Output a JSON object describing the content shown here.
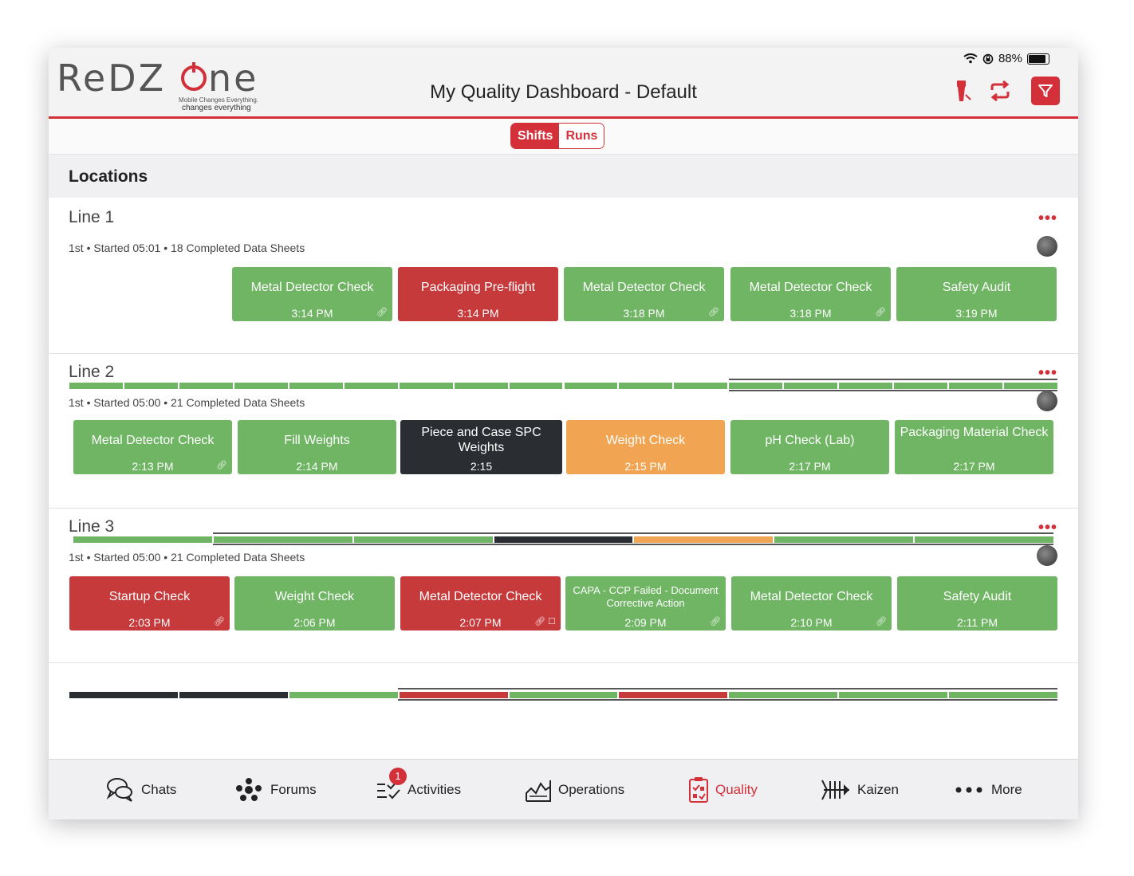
{
  "status_bar": {
    "battery": "88%"
  },
  "header": {
    "logo_text": "RedZone",
    "logo_tagline_1": "Mobile Changes Everything.",
    "logo_tagline_2": "changes everything",
    "title": "My Quality Dashboard - Default"
  },
  "segment": {
    "shifts": "Shifts",
    "runs": "Runs",
    "selected": "Shifts"
  },
  "locations_heading": "Locations",
  "lines": [
    {
      "name": "Line 1",
      "meta": "1st • Started 05:01 • 18 Completed Data Sheets",
      "more": "•••",
      "tiles": [
        {
          "name": "Metal Detector Check",
          "time": "3:14 PM",
          "status": "green",
          "icon": "link"
        },
        {
          "name": "Packaging Pre-flight",
          "time": "3:14 PM",
          "status": "red",
          "icon": ""
        },
        {
          "name": "Metal Detector Check",
          "time": "3:18 PM",
          "status": "green",
          "icon": "link"
        },
        {
          "name": "Metal Detector Check",
          "time": "3:18 PM",
          "status": "green",
          "icon": "link"
        },
        {
          "name": "Safety Audit",
          "time": "3:19 PM",
          "status": "green",
          "icon": ""
        }
      ],
      "history": [
        "green",
        "green",
        "green",
        "green",
        "green",
        "green",
        "green",
        "green",
        "green",
        "green",
        "green",
        "green",
        "green",
        "green",
        "green",
        "green",
        "green",
        "green"
      ]
    },
    {
      "name": "Line 2",
      "meta": "1st • Started 05:00 • 21 Completed Data Sheets",
      "more": "•••",
      "tiles": [
        {
          "name": "Metal Detector Check",
          "time": "2:13 PM",
          "status": "green",
          "icon": "link"
        },
        {
          "name": "Fill Weights",
          "time": "2:14 PM",
          "status": "green",
          "icon": ""
        },
        {
          "name": "Piece and Case SPC Weights",
          "time": "2:15",
          "status": "dark",
          "icon": ""
        },
        {
          "name": "Weight Check",
          "time": "2:15 PM",
          "status": "orange",
          "icon": ""
        },
        {
          "name": "pH Check (Lab)",
          "time": "2:17 PM",
          "status": "green",
          "icon": ""
        },
        {
          "name": "Packaging Material Check",
          "time": "2:17 PM",
          "status": "green",
          "icon": ""
        }
      ],
      "history": [
        "green",
        "green",
        "green",
        "dark",
        "orange",
        "green",
        "green"
      ]
    },
    {
      "name": "Line 3",
      "meta": "1st • Started 05:00 • 21 Completed Data Sheets",
      "more": "•••",
      "tiles": [
        {
          "name": "Startup Check",
          "time": "2:03 PM",
          "status": "red",
          "icon": "link"
        },
        {
          "name": "Weight Check",
          "time": "2:06 PM",
          "status": "green",
          "icon": ""
        },
        {
          "name": "Metal Detector Check",
          "time": "2:07 PM",
          "status": "red",
          "icon": "link-note"
        },
        {
          "name": "CAPA - CCP Failed - Document Corrective Action",
          "time": "2:09 PM",
          "status": "green",
          "icon": "link"
        },
        {
          "name": "Metal Detector Check",
          "time": "2:10 PM",
          "status": "green",
          "icon": "link"
        },
        {
          "name": "Safety Audit",
          "time": "2:11 PM",
          "status": "green",
          "icon": ""
        }
      ],
      "history": [
        "dark",
        "dark",
        "green",
        "red",
        "green",
        "red",
        "green",
        "green",
        "green"
      ]
    }
  ],
  "tabbar": [
    {
      "label": "Chats",
      "icon": "chat-icon",
      "active": false
    },
    {
      "label": "Forums",
      "icon": "forums-icon",
      "active": false
    },
    {
      "label": "Activities",
      "icon": "activities-icon",
      "active": false,
      "badge": "1"
    },
    {
      "label": "Operations",
      "icon": "operations-icon",
      "active": false
    },
    {
      "label": "Quality",
      "icon": "quality-icon",
      "active": true
    },
    {
      "label": "Kaizen",
      "icon": "kaizen-icon",
      "active": false
    },
    {
      "label": "More",
      "icon": "more-icon",
      "active": false
    }
  ],
  "colors": {
    "accent": "#d3303a",
    "green": "#6fb564",
    "red": "#c73a3c",
    "dark": "#2a2e33",
    "orange": "#f1a553"
  }
}
